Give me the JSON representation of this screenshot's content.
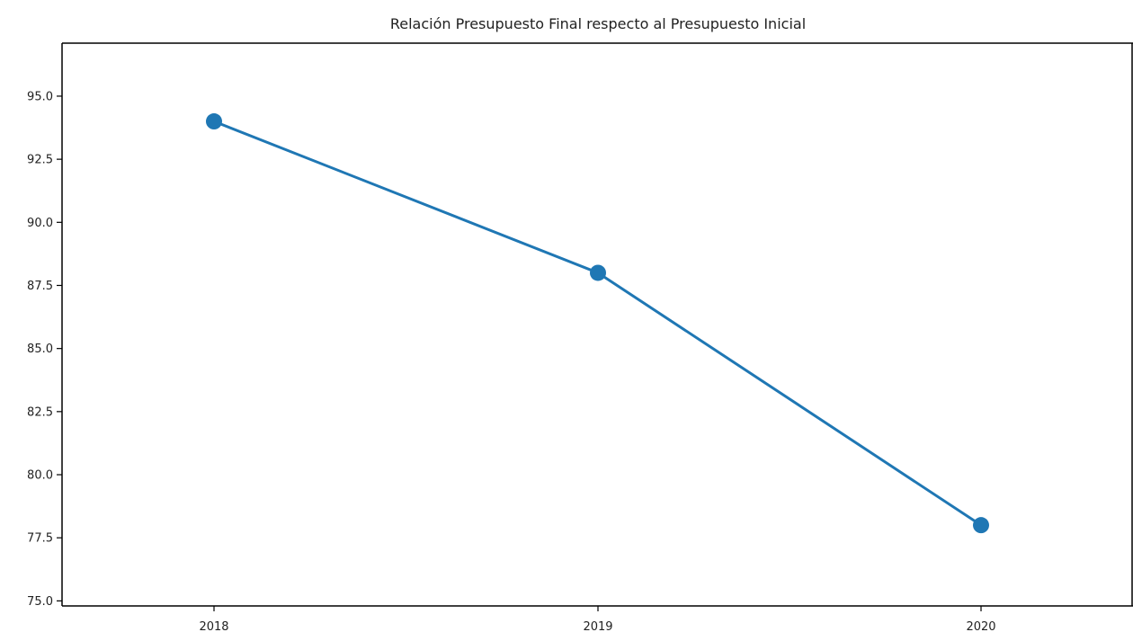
{
  "chart_data": {
    "type": "line",
    "title": "Relación Presupuesto Final respecto al Presupuesto Inicial",
    "xlabel": "",
    "ylabel": "",
    "categories": [
      "2018",
      "2019",
      "2020"
    ],
    "series": [
      {
        "values": [
          94.0,
          88.0,
          78.0
        ],
        "color": "#1f77b4"
      }
    ],
    "ylim": [
      74.8,
      97.1
    ],
    "yticks": [
      "75.0",
      "77.5",
      "80.0",
      "82.5",
      "85.0",
      "87.5",
      "90.0",
      "92.5",
      "95.0"
    ],
    "grid": false
  }
}
